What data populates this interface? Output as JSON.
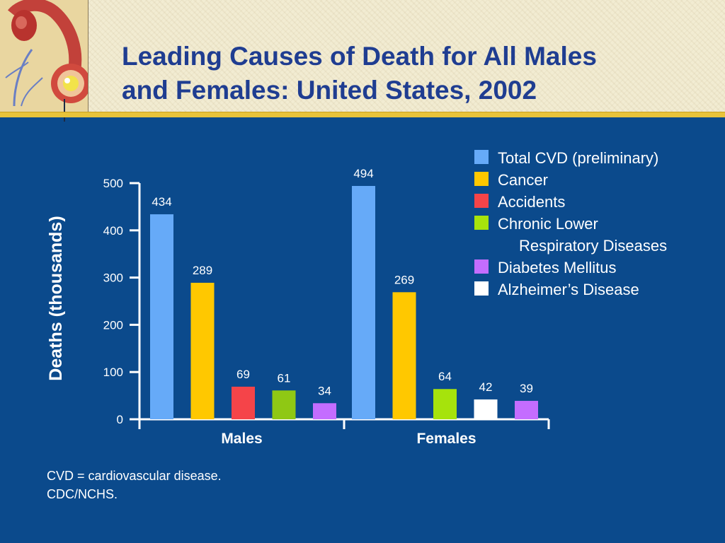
{
  "slide": {
    "title_line1": "Leading Causes of Death for All Males",
    "title_line2": "and Females: United States, 2002",
    "footnote_line1": "CVD = cardiovascular disease.",
    "footnote_line2": "CDC/NCHS.",
    "logo_icon": "heart-artery-illustration-icon",
    "colors": {
      "background": "#0b4a8c",
      "header": "#f2ecd2",
      "rule": "#e8c33a",
      "title": "#1f3d91"
    }
  },
  "chart_data": {
    "type": "bar",
    "ylabel": "Deaths (thousands)",
    "ylim": [
      0,
      500
    ],
    "yticks": [
      0,
      100,
      200,
      300,
      400,
      500
    ],
    "grid": false,
    "legend_position": "top-right",
    "series": [
      {
        "name": "Total CVD (preliminary)",
        "color": "#66aaf8"
      },
      {
        "name": "Cancer",
        "color": "#ffc800"
      },
      {
        "name": "Accidents",
        "color": "#f54449"
      },
      {
        "name": "Chronic Lower Respiratory Diseases",
        "label_line1": "Chronic Lower",
        "label_line2": "Respiratory Diseases",
        "color": "#a6e30c"
      },
      {
        "name": "Diabetes Mellitus",
        "color": "#c46dff"
      },
      {
        "name": "Alzheimer’s Disease",
        "color": "#ffffff"
      }
    ],
    "groups": [
      {
        "name": "Males",
        "bars": [
          {
            "series": 0,
            "value": 434,
            "label": "434"
          },
          {
            "series": 1,
            "value": 289,
            "label": "289"
          },
          {
            "series": 2,
            "value": 69,
            "label": "69"
          },
          {
            "series": 3,
            "value": 61,
            "label": "61",
            "color": "#8fc814"
          },
          {
            "series": 4,
            "value": 34,
            "label": "34"
          }
        ]
      },
      {
        "name": "Females",
        "bars": [
          {
            "series": 0,
            "value": 494,
            "label": "494"
          },
          {
            "series": 1,
            "value": 269,
            "label": "269"
          },
          {
            "series": 3,
            "value": 64,
            "label": "64"
          },
          {
            "series": 5,
            "value": 42,
            "label": "42"
          },
          {
            "series": 4,
            "value": 39,
            "label": "39"
          }
        ]
      }
    ]
  }
}
